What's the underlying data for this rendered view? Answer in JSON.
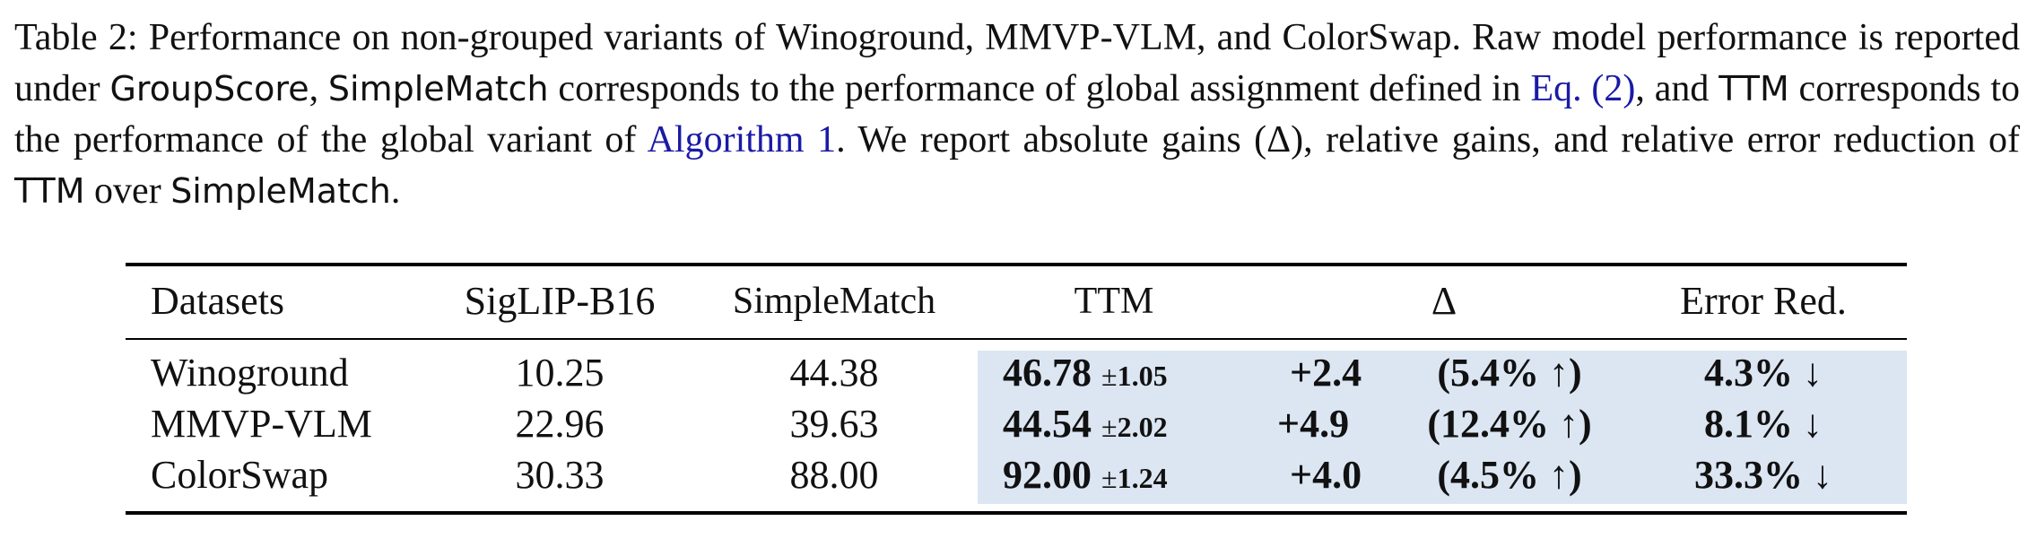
{
  "caption": {
    "prefix": "Table 2: Performance on non-grouped variants of Winoground, MMVP-VLM, and ColorSwap. Raw model performance is reported under ",
    "groupscore": "GroupScore",
    "sep1": ", ",
    "simplematch_1": "SimpleMatch",
    "mid1": " corresponds to the performance of global assignment defined in ",
    "eq_ref": "Eq. (2)",
    "mid2": ", and ",
    "ttm_1": "TTM",
    "mid3": " corresponds to the performance of the global variant of ",
    "alg_ref": "Algorithm 1",
    "mid4": ". We report absolute gains (Δ), relative gains, and relative error reduction of ",
    "ttm_2": "TTM",
    "mid5": " over ",
    "simplematch_2": "SimpleMatch",
    "end": "."
  },
  "table": {
    "headers": [
      "Datasets",
      "SigLIP-B16",
      "SimpleMatch",
      "TTM",
      "Δ",
      "Error Red."
    ],
    "rows": [
      {
        "dataset": "Winoground",
        "siglip": "10.25",
        "simplematch": "44.38",
        "ttm": "46.78",
        "ttm_std": "1.05",
        "delta": "+2.4",
        "rel_gain": "(5.4% ↑)",
        "error_red": "4.3% ↓"
      },
      {
        "dataset": "MMVP-VLM",
        "siglip": "22.96",
        "simplematch": "39.63",
        "ttm": "44.54",
        "ttm_std": "2.02",
        "delta": "+4.9",
        "rel_gain": "(12.4% ↑)",
        "error_red": "8.1% ↓"
      },
      {
        "dataset": "ColorSwap",
        "siglip": "30.33",
        "simplematch": "88.00",
        "ttm": "92.00",
        "ttm_std": "1.24",
        "delta": "+4.0",
        "rel_gain": "(4.5% ↑)",
        "error_red": "33.3% ↓"
      }
    ],
    "pm_symbol": "±",
    "highlight_color": "#dce6f3"
  }
}
